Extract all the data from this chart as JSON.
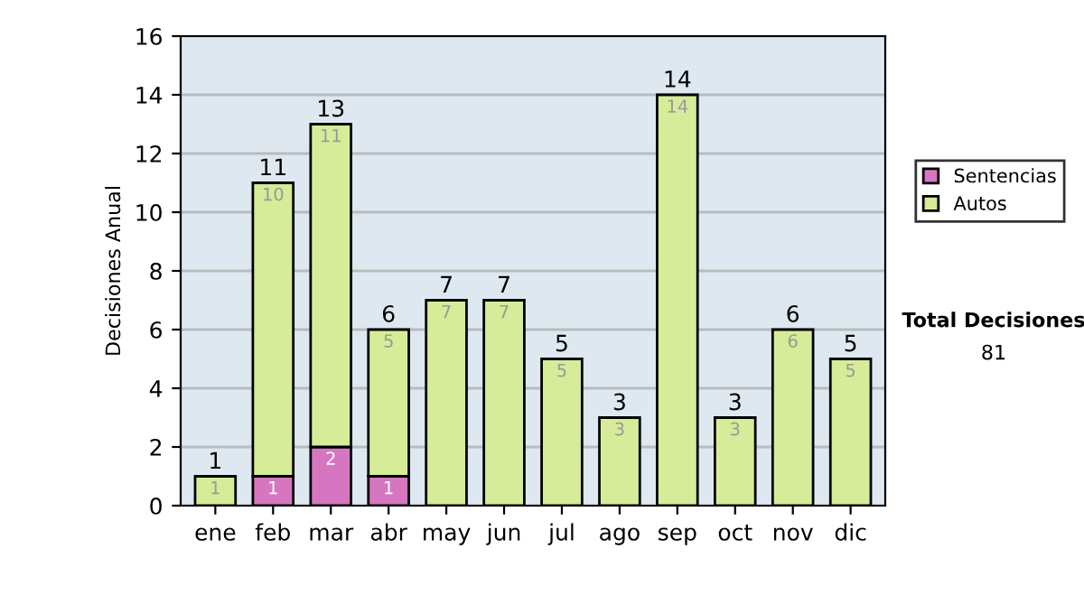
{
  "chart_data": {
    "type": "bar",
    "stacked": true,
    "ylabel": "Decisiones Anual",
    "categories": [
      "ene",
      "feb",
      "mar",
      "abr",
      "may",
      "jun",
      "jul",
      "ago",
      "sep",
      "oct",
      "nov",
      "dic"
    ],
    "series": [
      {
        "name": "Sentencias",
        "color": "#d676c0",
        "values": [
          0,
          1,
          2,
          1,
          0,
          0,
          0,
          0,
          0,
          0,
          0,
          0
        ],
        "value_labels": [
          null,
          "1",
          "2",
          "1",
          null,
          null,
          null,
          null,
          null,
          null,
          null,
          null
        ]
      },
      {
        "name": "Autos",
        "color": "#d6ec98",
        "values": [
          1,
          10,
          11,
          5,
          7,
          7,
          5,
          3,
          14,
          3,
          6,
          5
        ],
        "value_labels": [
          "1",
          "10",
          "11",
          "5",
          "7",
          "7",
          "5",
          "3",
          "14",
          "3",
          "6",
          "5"
        ]
      }
    ],
    "totals": [
      "1",
      "11",
      "13",
      "6",
      "7",
      "7",
      "5",
      "3",
      "14",
      "3",
      "6",
      "5"
    ],
    "ylim": [
      0,
      16
    ],
    "yticks": [
      0,
      2,
      4,
      6,
      8,
      10,
      12,
      14,
      16
    ],
    "grid": "y",
    "legend": "right",
    "annotations": [
      "Total Decisiones",
      "81"
    ]
  }
}
